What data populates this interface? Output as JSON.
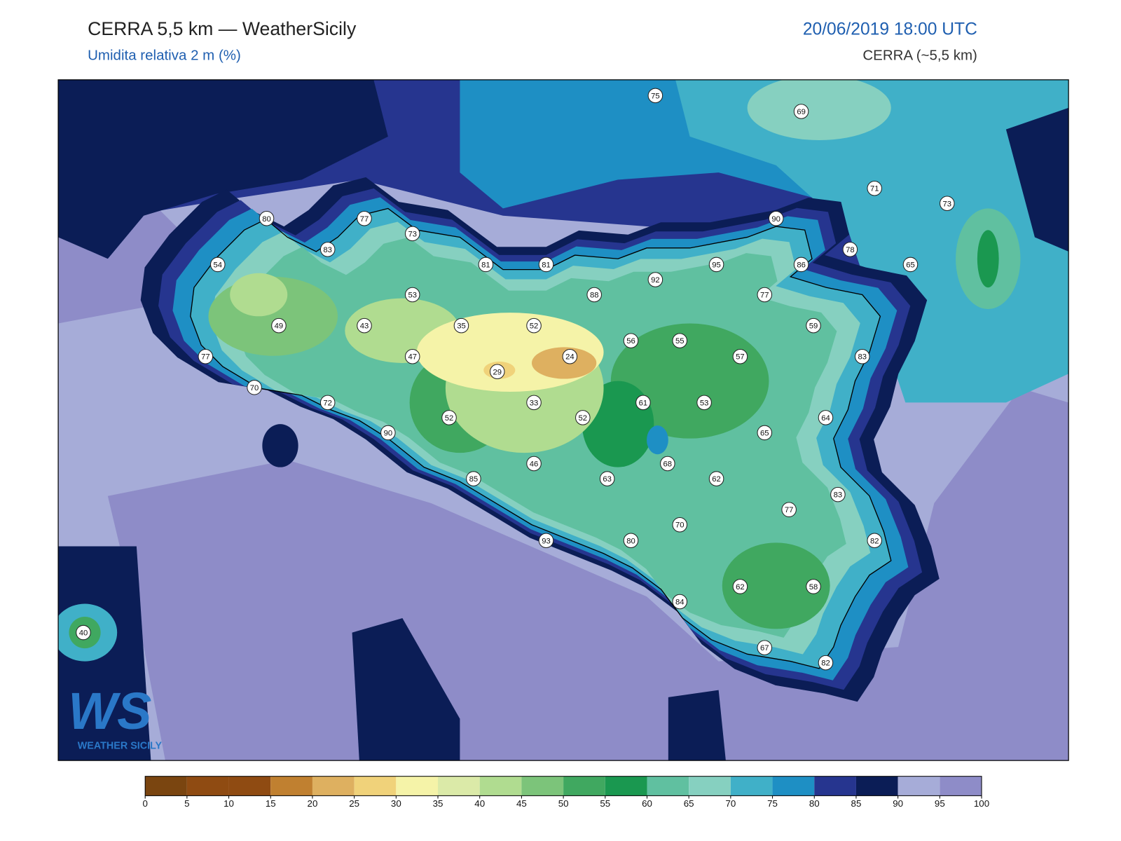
{
  "header": {
    "title": "CERRA 5,5 km — WeatherSicily",
    "subtitle": "Umidita relativa 2 m (%)",
    "datetime": "20/06/2019 18:00 UTC",
    "model": "CERRA (~5,5 km)"
  },
  "stations": [
    75,
    69,
    71,
    73,
    80,
    77,
    73,
    90,
    83,
    78,
    54,
    81,
    81,
    95,
    86,
    65,
    92,
    53,
    88,
    77,
    49,
    43,
    35,
    52,
    59,
    56,
    55,
    47,
    24,
    57,
    83,
    77,
    29,
    70,
    72,
    33,
    61,
    53,
    52,
    52,
    64,
    90,
    65,
    46,
    68,
    63,
    62,
    85,
    83,
    77,
    70,
    93,
    80,
    82,
    62,
    58,
    84,
    40,
    67,
    82
  ],
  "colorbar": {
    "ticks": [
      0,
      5,
      10,
      15,
      20,
      25,
      30,
      35,
      40,
      45,
      50,
      55,
      60,
      65,
      70,
      75,
      80,
      85,
      90,
      95,
      100
    ],
    "colors": [
      "#7a4510",
      "#8f4b12",
      "#8f4b12",
      "#c08030",
      "#deb060",
      "#f0d27a",
      "#f5f3a8",
      "#dbeaa8",
      "#b0dc90",
      "#7cc47a",
      "#40a860",
      "#1a9850",
      "#60c0a0",
      "#86d0c0",
      "#40b0c8",
      "#1e8fc4",
      "#26358f",
      "#0b1d56",
      "#a6acd8",
      "#8e8cc8"
    ]
  },
  "logo": {
    "mark": "WS",
    "text": "WEATHER SICILY"
  }
}
